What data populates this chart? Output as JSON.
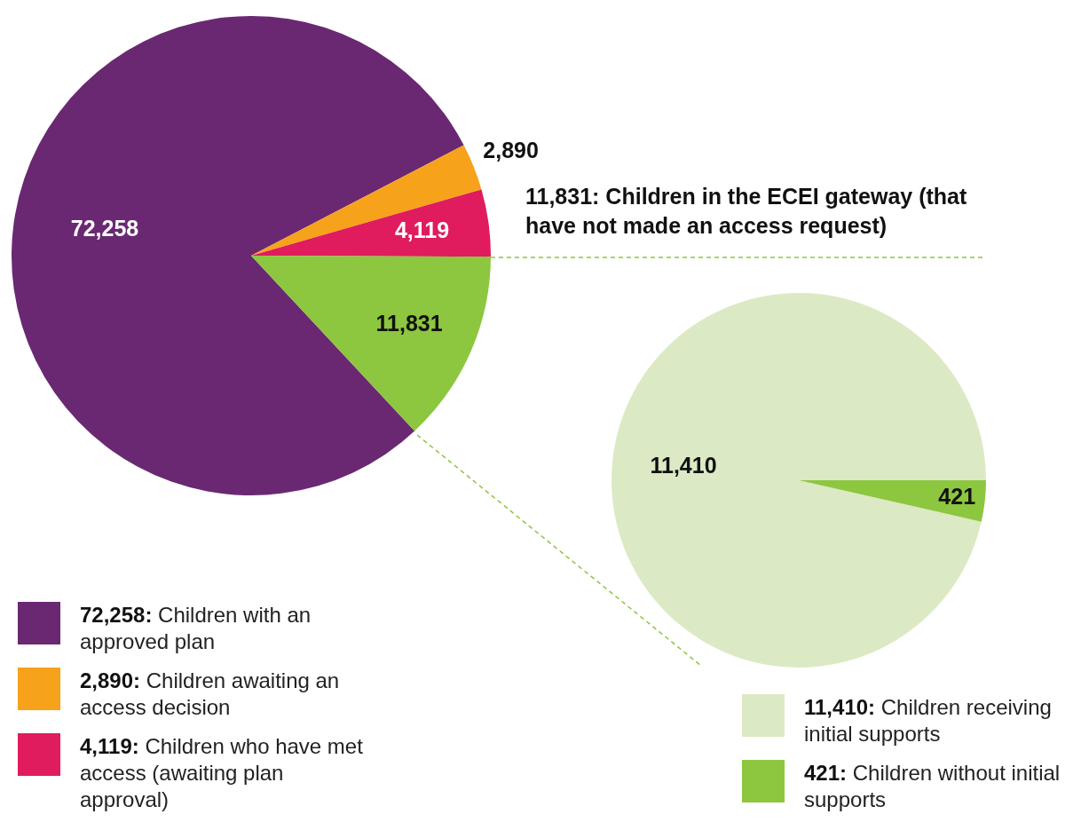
{
  "chart_data": [
    {
      "type": "pie",
      "categories": [
        "72,258: Children with an approved plan",
        "2,890: Children awaiting an access decision",
        "4,119: Children who have met access (awaiting plan approval)",
        null
      ],
      "values": [
        72258,
        2890,
        4119,
        11831
      ],
      "value_labels": [
        "72,258",
        "2,890",
        "4,119",
        "11,831"
      ],
      "colors": [
        "#6a2872",
        "#f7a21b",
        "#e01b5e",
        "#8dc63f"
      ],
      "legend": "bottom left",
      "annotations": [
        "11,831: Children in the ECEI gateway (that have not made an access request)"
      ]
    },
    {
      "type": "pie",
      "categories": [
        "11,410: Children receiving initial supports",
        "421: Children without initial supports"
      ],
      "values": [
        11410,
        421
      ],
      "value_labels": [
        "11,410",
        "421"
      ],
      "colors": [
        "#dbeac4",
        "#8dc63f"
      ],
      "legend": "bottom right"
    }
  ]
}
